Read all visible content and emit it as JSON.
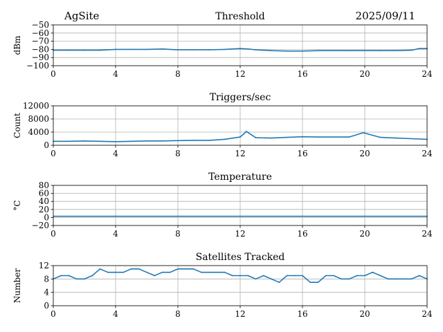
{
  "header": {
    "site": "AgSite",
    "date": "2025/09/11"
  },
  "chart_data": [
    {
      "type": "line",
      "title": "Threshold",
      "xlabel": "",
      "ylabel": "dBm",
      "xlim": [
        0,
        24
      ],
      "ylim": [
        -100,
        -50
      ],
      "xticks": [
        0,
        4,
        8,
        12,
        16,
        20,
        24
      ],
      "yticks": [
        -100,
        -90,
        -80,
        -70,
        -60,
        -50
      ],
      "ytick_labels": [
        "−100",
        "−90",
        "−80",
        "−70",
        "−60",
        "−50"
      ],
      "grid": true,
      "color": "#1f77b4",
      "series": [
        {
          "x": [
            0,
            1,
            2,
            3,
            4,
            5,
            6,
            7,
            8,
            9,
            10,
            11,
            12,
            12.5,
            13,
            14,
            15,
            16,
            17,
            18,
            19,
            20,
            21,
            22,
            23,
            23.5,
            24
          ],
          "values": [
            -81,
            -81,
            -81,
            -81,
            -80,
            -80,
            -80,
            -79.5,
            -80.5,
            -80.5,
            -80.5,
            -80,
            -79,
            -79.5,
            -80.5,
            -81.5,
            -82,
            -82,
            -81.5,
            -81.5,
            -81.5,
            -81.5,
            -81.5,
            -81.5,
            -81,
            -79,
            -79
          ]
        }
      ]
    },
    {
      "type": "line",
      "title": "Triggers/sec",
      "xlabel": "",
      "ylabel": "Count",
      "xlim": [
        0,
        24
      ],
      "ylim": [
        0,
        12000
      ],
      "xticks": [
        0,
        4,
        8,
        12,
        16,
        20,
        24
      ],
      "yticks": [
        0,
        4000,
        8000,
        12000
      ],
      "ytick_labels": [
        "0",
        "4000",
        "8000",
        "12000"
      ],
      "grid": true,
      "color": "#1f77b4",
      "series": [
        {
          "x": [
            0,
            1,
            2,
            3,
            4,
            5,
            6,
            7,
            8,
            9,
            10,
            11,
            12,
            12.4,
            13,
            14,
            15,
            16,
            17,
            18,
            19,
            19.9,
            21,
            22,
            23,
            24
          ],
          "values": [
            1200,
            1200,
            1300,
            1200,
            1100,
            1200,
            1300,
            1300,
            1400,
            1500,
            1500,
            1800,
            2500,
            4200,
            2300,
            2200,
            2400,
            2600,
            2500,
            2500,
            2500,
            3800,
            2400,
            2200,
            2000,
            1800
          ]
        }
      ]
    },
    {
      "type": "line",
      "title": "Temperature",
      "xlabel": "",
      "ylabel": "°C",
      "xlim": [
        0,
        24
      ],
      "ylim": [
        -20,
        80
      ],
      "xticks": [
        0,
        4,
        8,
        12,
        16,
        20,
        24
      ],
      "yticks": [
        -20,
        0,
        20,
        40,
        60,
        80
      ],
      "ytick_labels": [
        "−20",
        "0",
        "20",
        "40",
        "60",
        "80"
      ],
      "grid": true,
      "color": "#1f77b4",
      "series": [
        {
          "x": [
            0,
            4,
            8,
            12,
            16,
            20,
            24
          ],
          "values": [
            3,
            3,
            3,
            3,
            3,
            3,
            3
          ]
        }
      ]
    },
    {
      "type": "line",
      "title": "Satellites Tracked",
      "xlabel": "",
      "ylabel": "Number",
      "xlim": [
        0,
        24
      ],
      "ylim": [
        0,
        12
      ],
      "xticks": [
        0,
        4,
        8,
        12,
        16,
        20,
        24
      ],
      "yticks": [
        0,
        4,
        8,
        12
      ],
      "ytick_labels": [
        "0",
        "4",
        "8",
        "12"
      ],
      "grid": true,
      "color": "#1f77b4",
      "series": [
        {
          "x": [
            0,
            0.5,
            1,
            1.5,
            2,
            2.5,
            3,
            3.5,
            4,
            4.5,
            5,
            5.5,
            6,
            6.5,
            7,
            7.5,
            8,
            8.5,
            9,
            9.5,
            10,
            10.5,
            11,
            11.5,
            12,
            12.5,
            13,
            13.5,
            14,
            14.5,
            15,
            15.5,
            16,
            16.5,
            17,
            17.5,
            18,
            18.5,
            19,
            19.5,
            20,
            20.5,
            21,
            21.5,
            22,
            22.5,
            23,
            23.5,
            24
          ],
          "values": [
            8,
            9,
            9,
            8,
            8,
            9,
            11,
            10,
            10,
            10,
            11,
            11,
            10,
            9,
            10,
            10,
            11,
            11,
            11,
            10,
            10,
            10,
            10,
            9,
            9,
            9,
            8,
            9,
            8,
            7,
            9,
            9,
            9,
            7,
            7,
            9,
            9,
            8,
            8,
            9,
            9,
            10,
            9,
            8,
            8,
            8,
            8,
            9,
            8
          ]
        }
      ]
    }
  ]
}
